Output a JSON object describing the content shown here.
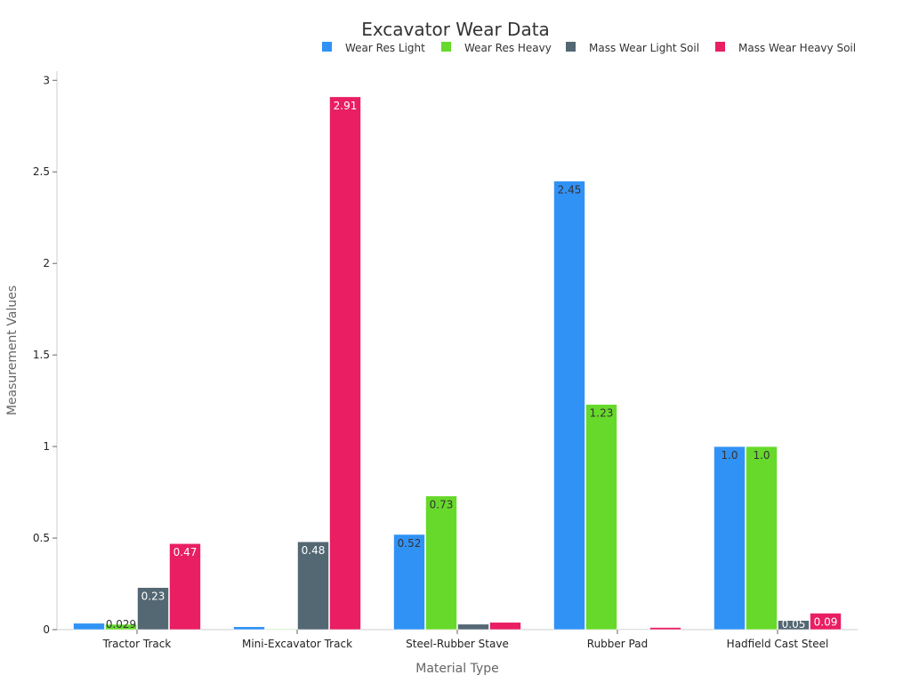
{
  "chart_data": {
    "type": "bar",
    "title": "Excavator Wear Data",
    "xlabel": "Material Type",
    "ylabel": "Measurement Values",
    "ylim": [
      0,
      3.05
    ],
    "yticks": [
      {
        "value": 0,
        "label": "0"
      },
      {
        "value": 0.5,
        "label": "0.5"
      },
      {
        "value": 1,
        "label": "1"
      },
      {
        "value": 1.5,
        "label": "1.5"
      },
      {
        "value": 2,
        "label": "2"
      },
      {
        "value": 2.5,
        "label": "2.5"
      },
      {
        "value": 3,
        "label": "3"
      }
    ],
    "legend_position": "top-right",
    "grid": false,
    "categories": [
      "Tractor Track",
      "Mini-Excavator Track",
      "Steel-Rubber Stave",
      "Rubber Pad",
      "Hadfield Cast Steel"
    ],
    "series": [
      {
        "name": "Wear Res Light",
        "color": "#3192f5",
        "values": [
          0.035,
          0.016,
          0.52,
          2.45,
          1.0
        ],
        "labels": [
          "",
          "",
          "0.52",
          "2.45",
          "1.0"
        ],
        "label_color": "#333333"
      },
      {
        "name": "Wear Res Heavy",
        "color": "#66d92a",
        "values": [
          0.029,
          0.004,
          0.73,
          1.23,
          1.0
        ],
        "labels": [
          "0.029",
          "",
          "0.73",
          "1.23",
          "1.0"
        ],
        "label_color": "#333333"
      },
      {
        "name": "Mass Wear Light Soil",
        "color": "#546873",
        "values": [
          0.23,
          0.48,
          0.03,
          0.002,
          0.05
        ],
        "labels": [
          "0.23",
          "0.48",
          "",
          "",
          "0.05"
        ],
        "label_color": "#ffffff"
      },
      {
        "name": "Mass Wear Heavy Soil",
        "color": "#e91e63",
        "values": [
          0.47,
          2.91,
          0.04,
          0.012,
          0.09
        ],
        "labels": [
          "0.47",
          "2.91",
          "",
          "",
          "0.09"
        ],
        "label_color": "#ffffff"
      }
    ]
  }
}
